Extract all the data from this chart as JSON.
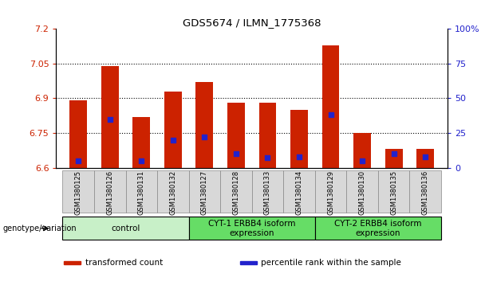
{
  "title": "GDS5674 / ILMN_1775368",
  "samples": [
    "GSM1380125",
    "GSM1380126",
    "GSM1380131",
    "GSM1380132",
    "GSM1380127",
    "GSM1380128",
    "GSM1380133",
    "GSM1380134",
    "GSM1380129",
    "GSM1380130",
    "GSM1380135",
    "GSM1380136"
  ],
  "transformed_count": [
    6.89,
    7.04,
    6.82,
    6.93,
    6.97,
    6.88,
    6.88,
    6.85,
    7.13,
    6.75,
    6.68,
    6.68
  ],
  "percentile_rank": [
    5,
    35,
    5,
    20,
    22,
    10,
    7,
    8,
    38,
    5,
    10,
    8
  ],
  "ylim_left": [
    6.6,
    7.2
  ],
  "ylim_right": [
    0,
    100
  ],
  "yticks_left": [
    6.6,
    6.75,
    6.9,
    7.05,
    7.2
  ],
  "yticks_right": [
    0,
    25,
    50,
    75,
    100
  ],
  "ytick_labels_left": [
    "6.6",
    "6.75",
    "6.9",
    "7.05",
    "7.2"
  ],
  "ytick_labels_right": [
    "0",
    "25",
    "50",
    "75",
    "100%"
  ],
  "hlines": [
    6.75,
    6.9,
    7.05
  ],
  "bar_color": "#cc2200",
  "dot_color": "#2222cc",
  "groups": [
    {
      "label": "control",
      "start": 0,
      "end": 3,
      "color": "#c8f0c8"
    },
    {
      "label": "CYT-1 ERBB4 isoform\nexpression",
      "start": 4,
      "end": 7,
      "color": "#66dd66"
    },
    {
      "label": "CYT-2 ERBB4 isoform\nexpression",
      "start": 8,
      "end": 11,
      "color": "#66dd66"
    }
  ],
  "xlabel_group": "genotype/variation",
  "legend_items": [
    {
      "color": "#cc2200",
      "label": "transformed count"
    },
    {
      "color": "#2222cc",
      "label": "percentile rank within the sample"
    }
  ],
  "left_color": "#cc2200",
  "right_color": "#2222cc",
  "bar_width": 0.55,
  "baseline": 6.6,
  "sample_box_color": "#d8d8d8",
  "sample_box_edge": "#888888"
}
